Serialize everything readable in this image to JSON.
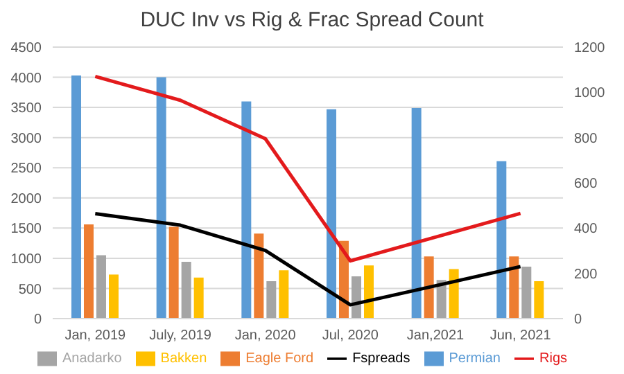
{
  "chart_data": {
    "type": "bar",
    "title": "DUC Inv vs Rig & Frac Spread Count",
    "categories": [
      "Jan, 2019",
      "July, 2019",
      "Jan, 2020",
      "Jul, 2020",
      "Jan,2021",
      "Jun, 2021"
    ],
    "series": [
      {
        "name": "Permian",
        "color": "#5b9bd5",
        "values": [
          4030,
          4000,
          3600,
          3470,
          3490,
          2610
        ]
      },
      {
        "name": "Eagle Ford",
        "color": "#ed7d31",
        "values": [
          1560,
          1520,
          1410,
          1290,
          1030,
          1030
        ]
      },
      {
        "name": "Anadarko",
        "color": "#a5a5a5",
        "values": [
          1050,
          940,
          620,
          700,
          640,
          860
        ]
      },
      {
        "name": "Bakken",
        "color": "#ffc000",
        "values": [
          730,
          680,
          800,
          880,
          820,
          620
        ]
      },
      {
        "name": "Rigs",
        "type": "line",
        "axis": "y2",
        "color": "#e31a1c",
        "values": [
          1070,
          965,
          795,
          255,
          360,
          465
        ]
      },
      {
        "name": "Fspreads",
        "type": "line",
        "axis": "y2",
        "color": "#000000",
        "values": [
          464,
          413,
          301,
          61,
          145,
          230
        ]
      }
    ],
    "ylim": [
      0,
      4500
    ],
    "yticks": [
      0,
      500,
      1000,
      1500,
      2000,
      2500,
      3000,
      3500,
      4000,
      4500
    ],
    "y2lim": [
      0,
      1200
    ],
    "y2ticks": [
      0,
      200,
      400,
      600,
      800,
      1000,
      1200
    ],
    "grid": "y",
    "legend": "bottom",
    "marker": "none",
    "line_style": "solid"
  }
}
